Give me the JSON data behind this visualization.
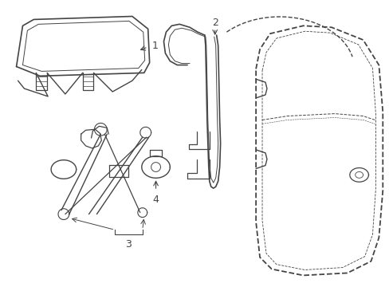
{
  "bg_color": "#ffffff",
  "line_color": "#444444",
  "label_color": "#000000",
  "figsize": [
    4.89,
    3.6
  ],
  "dpi": 100
}
